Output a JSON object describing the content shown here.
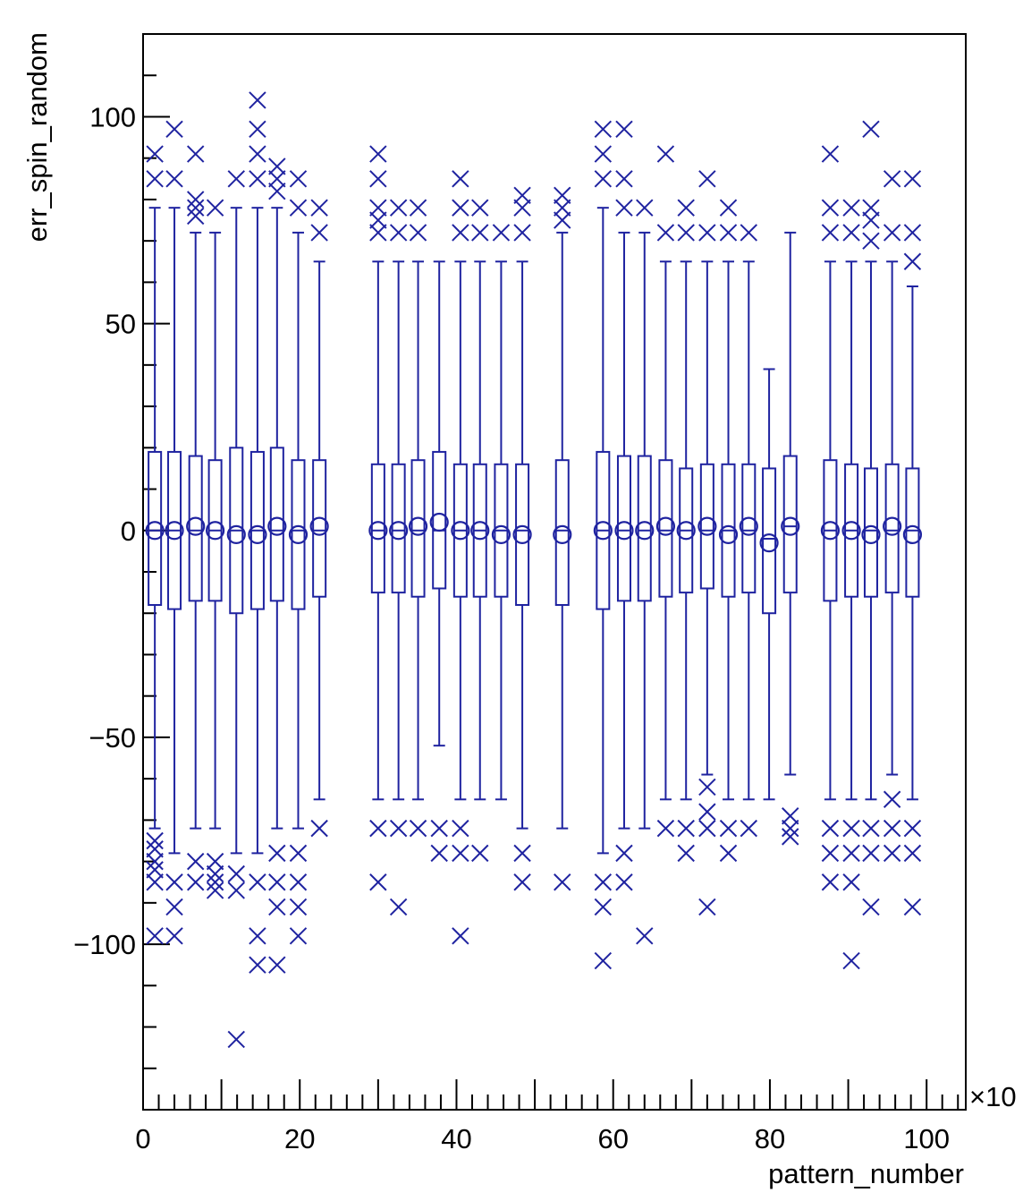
{
  "chart_data": {
    "type": "box",
    "title": "",
    "xlabel": "pattern_number",
    "ylabel": "err_spin_random",
    "x_exponent_label": "×10",
    "xlim": [
      0,
      105
    ],
    "ylim": [
      -140,
      120
    ],
    "x_ticks": [
      0,
      20,
      40,
      60,
      80,
      100
    ],
    "y_ticks": [
      -100,
      -50,
      0,
      50,
      100
    ],
    "colors": {
      "series": "#1f23a0",
      "frame": "#000000"
    },
    "boxes": [
      {
        "x": 1.5,
        "q1": -18,
        "q3": 19,
        "median": 0,
        "mean": 0,
        "whisker_low": -72,
        "whisker_high": 78,
        "outliers": [
          91,
          85,
          -75,
          -77,
          -80,
          -82,
          -85,
          -98
        ]
      },
      {
        "x": 4.0,
        "q1": -19,
        "q3": 19,
        "median": 0,
        "mean": 0,
        "whisker_low": -78,
        "whisker_high": 78,
        "outliers": [
          97,
          85,
          -85,
          -91,
          -98
        ]
      },
      {
        "x": 6.7,
        "q1": -17,
        "q3": 18,
        "median": 0,
        "mean": 1,
        "whisker_low": -72,
        "whisker_high": 72,
        "outliers": [
          91,
          80,
          78,
          76,
          -85,
          -80
        ]
      },
      {
        "x": 9.2,
        "q1": -17,
        "q3": 17,
        "median": 0,
        "mean": 0,
        "whisker_low": -72,
        "whisker_high": 72,
        "outliers": [
          78,
          -80,
          -83,
          -85,
          -87
        ]
      },
      {
        "x": 11.9,
        "q1": -20,
        "q3": 20,
        "median": 0,
        "mean": -1,
        "whisker_low": -78,
        "whisker_high": 78,
        "outliers": [
          85,
          -83,
          -87,
          -123
        ]
      },
      {
        "x": 14.6,
        "q1": -19,
        "q3": 19,
        "median": 0,
        "mean": -1,
        "whisker_low": -78,
        "whisker_high": 78,
        "outliers": [
          104,
          97,
          91,
          85,
          -85,
          -98,
          -105
        ]
      },
      {
        "x": 17.1,
        "q1": -17,
        "q3": 20,
        "median": 0,
        "mean": 1,
        "whisker_low": -72,
        "whisker_high": 78,
        "outliers": [
          88,
          85,
          82,
          -78,
          -85,
          -91,
          -105
        ]
      },
      {
        "x": 19.8,
        "q1": -19,
        "q3": 17,
        "median": 0,
        "mean": -1,
        "whisker_low": -72,
        "whisker_high": 72,
        "outliers": [
          85,
          78,
          -78,
          -85,
          -91,
          -98
        ]
      },
      {
        "x": 22.5,
        "q1": -16,
        "q3": 17,
        "median": 0,
        "mean": 1,
        "whisker_low": -65,
        "whisker_high": 65,
        "outliers": [
          78,
          72,
          -72
        ]
      },
      {
        "x": 30.0,
        "q1": -15,
        "q3": 16,
        "median": 0,
        "mean": 0,
        "whisker_low": -65,
        "whisker_high": 65,
        "outliers": [
          91,
          85,
          78,
          75,
          72,
          -72,
          -85
        ]
      },
      {
        "x": 32.6,
        "q1": -15,
        "q3": 16,
        "median": 0,
        "mean": 0,
        "whisker_low": -65,
        "whisker_high": 65,
        "outliers": [
          78,
          72,
          -72,
          -91
        ]
      },
      {
        "x": 35.1,
        "q1": -16,
        "q3": 17,
        "median": 0,
        "mean": 1,
        "whisker_low": -65,
        "whisker_high": 65,
        "outliers": [
          78,
          72,
          -72
        ]
      },
      {
        "x": 37.8,
        "q1": -14,
        "q3": 19,
        "median": 0,
        "mean": 2,
        "whisker_low": -52,
        "whisker_high": 65,
        "outliers": [
          -72,
          -78
        ]
      },
      {
        "x": 40.5,
        "q1": -16,
        "q3": 16,
        "median": 0,
        "mean": 0,
        "whisker_low": -65,
        "whisker_high": 65,
        "outliers": [
          85,
          78,
          72,
          -72,
          -78,
          -98
        ]
      },
      {
        "x": 43.0,
        "q1": -16,
        "q3": 16,
        "median": 0,
        "mean": 0,
        "whisker_low": -65,
        "whisker_high": 65,
        "outliers": [
          78,
          72,
          -78
        ]
      },
      {
        "x": 45.7,
        "q1": -16,
        "q3": 16,
        "median": 0,
        "mean": -1,
        "whisker_low": -65,
        "whisker_high": 65,
        "outliers": [
          72
        ]
      },
      {
        "x": 48.4,
        "q1": -18,
        "q3": 16,
        "median": 0,
        "mean": -1,
        "whisker_low": -72,
        "whisker_high": 65,
        "outliers": [
          81,
          78,
          72,
          -78,
          -85
        ]
      },
      {
        "x": 53.5,
        "q1": -18,
        "q3": 17,
        "median": 0,
        "mean": -1,
        "whisker_low": -72,
        "whisker_high": 72,
        "outliers": [
          81,
          78,
          75,
          -85
        ]
      },
      {
        "x": 58.7,
        "q1": -19,
        "q3": 19,
        "median": 0,
        "mean": 0,
        "whisker_low": -78,
        "whisker_high": 78,
        "outliers": [
          97,
          91,
          85,
          -85,
          -91,
          -104
        ]
      },
      {
        "x": 61.4,
        "q1": -17,
        "q3": 18,
        "median": 0,
        "mean": 0,
        "whisker_low": -72,
        "whisker_high": 72,
        "outliers": [
          97,
          85,
          78,
          -78,
          -85
        ]
      },
      {
        "x": 64.0,
        "q1": -17,
        "q3": 18,
        "median": 0,
        "mean": 0,
        "whisker_low": -72,
        "whisker_high": 72,
        "outliers": [
          78,
          -98
        ]
      },
      {
        "x": 66.7,
        "q1": -16,
        "q3": 17,
        "median": 0,
        "mean": 1,
        "whisker_low": -65,
        "whisker_high": 65,
        "outliers": [
          91,
          72,
          -72
        ]
      },
      {
        "x": 69.3,
        "q1": -15,
        "q3": 15,
        "median": 0,
        "mean": 0,
        "whisker_low": -65,
        "whisker_high": 65,
        "outliers": [
          78,
          72,
          -72,
          -78
        ]
      },
      {
        "x": 72.0,
        "q1": -14,
        "q3": 16,
        "median": 0,
        "mean": 1,
        "whisker_low": -59,
        "whisker_high": 65,
        "outliers": [
          85,
          72,
          -62,
          -68,
          -72,
          -91
        ]
      },
      {
        "x": 74.7,
        "q1": -16,
        "q3": 16,
        "median": 0,
        "mean": -1,
        "whisker_low": -65,
        "whisker_high": 65,
        "outliers": [
          78,
          72,
          -72,
          -78
        ]
      },
      {
        "x": 77.3,
        "q1": -15,
        "q3": 16,
        "median": 0,
        "mean": 1,
        "whisker_low": -65,
        "whisker_high": 65,
        "outliers": [
          72,
          -72
        ]
      },
      {
        "x": 79.9,
        "q1": -20,
        "q3": 15,
        "median": -2,
        "mean": -3,
        "whisker_low": -65,
        "whisker_high": 39,
        "outliers": []
      },
      {
        "x": 82.6,
        "q1": -15,
        "q3": 18,
        "median": 1,
        "mean": 1,
        "whisker_low": -59,
        "whisker_high": 72,
        "outliers": [
          -69,
          -72,
          -74
        ]
      },
      {
        "x": 87.7,
        "q1": -17,
        "q3": 17,
        "median": 0,
        "mean": 0,
        "whisker_low": -65,
        "whisker_high": 65,
        "outliers": [
          91,
          78,
          72,
          -72,
          -78,
          -85
        ]
      },
      {
        "x": 90.4,
        "q1": -16,
        "q3": 16,
        "median": 0,
        "mean": 0,
        "whisker_low": -65,
        "whisker_high": 65,
        "outliers": [
          78,
          72,
          -72,
          -78,
          -85,
          -104
        ]
      },
      {
        "x": 92.9,
        "q1": -16,
        "q3": 15,
        "median": 0,
        "mean": -1,
        "whisker_low": -65,
        "whisker_high": 65,
        "outliers": [
          97,
          78,
          75,
          70,
          -72,
          -78,
          -91
        ]
      },
      {
        "x": 95.6,
        "q1": -15,
        "q3": 16,
        "median": 0,
        "mean": 1,
        "whisker_low": -59,
        "whisker_high": 65,
        "outliers": [
          85,
          72,
          -65,
          -72,
          -78
        ]
      },
      {
        "x": 98.2,
        "q1": -16,
        "q3": 15,
        "median": 0,
        "mean": -1,
        "whisker_low": -65,
        "whisker_high": 59,
        "outliers": [
          85,
          72,
          65,
          -72,
          -78,
          -91
        ]
      }
    ]
  }
}
